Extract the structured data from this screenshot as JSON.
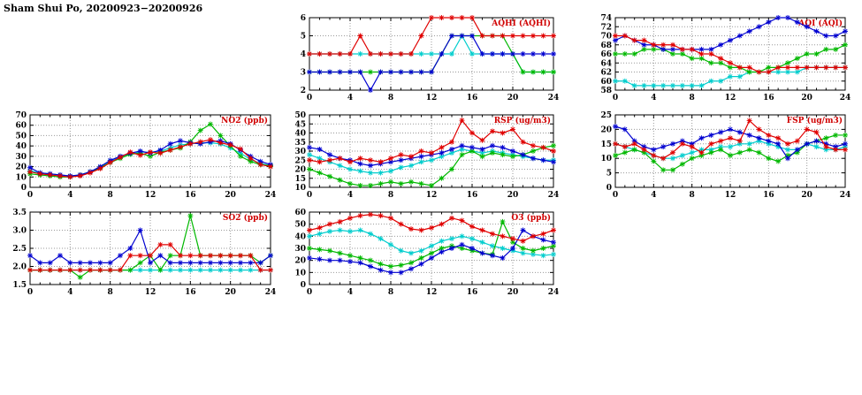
{
  "title": "Sham Shui Po, 20200923−20200926",
  "colors": {
    "red": "#e00000",
    "green": "#00b800",
    "blue": "#0000d0",
    "cyan": "#00cdcd",
    "chart_title": "#d00000"
  },
  "chart_data": [
    {
      "id": "aqhi",
      "type": "line",
      "title": "AQHI (AQHI)",
      "x_range": [
        0,
        24
      ],
      "x_ticks": [
        0,
        4,
        8,
        12,
        16,
        20,
        24
      ],
      "ylim": [
        2,
        6
      ],
      "y_ticks": [
        2,
        3,
        4,
        5,
        6
      ],
      "series": [
        {
          "name": "cyan",
          "color": "cyan",
          "values": [
            4,
            4,
            4,
            4,
            4,
            4,
            4,
            4,
            4,
            4,
            4,
            4,
            4,
            4,
            4,
            5,
            4,
            4,
            4,
            4,
            4,
            3,
            3,
            3,
            3
          ]
        },
        {
          "name": "green",
          "color": "green",
          "values": [
            3,
            3,
            3,
            3,
            3,
            3,
            3,
            3,
            3,
            3,
            3,
            3,
            3,
            4,
            5,
            5,
            5,
            5,
            5,
            5,
            4,
            3,
            3,
            3,
            3
          ]
        },
        {
          "name": "blue",
          "color": "blue",
          "values": [
            3,
            3,
            3,
            3,
            3,
            3,
            2,
            3,
            3,
            3,
            3,
            3,
            3,
            4,
            5,
            5,
            5,
            4,
            4,
            4,
            4,
            4,
            4,
            4,
            4
          ]
        },
        {
          "name": "red",
          "color": "red",
          "values": [
            4,
            4,
            4,
            4,
            4,
            5,
            4,
            4,
            4,
            4,
            4,
            5,
            6,
            6,
            6,
            6,
            6,
            5,
            5,
            5,
            5,
            5,
            5,
            5,
            5
          ]
        }
      ]
    },
    {
      "id": "aqi",
      "type": "line",
      "title": "AQI (AQI)",
      "x_range": [
        0,
        24
      ],
      "x_ticks": [
        0,
        4,
        8,
        12,
        16,
        20,
        24
      ],
      "ylim": [
        58,
        74
      ],
      "y_ticks": [
        58,
        60,
        62,
        64,
        66,
        68,
        70,
        72,
        74
      ],
      "series": [
        {
          "name": "cyan",
          "color": "cyan",
          "values": [
            60,
            60,
            59,
            59,
            59,
            59,
            59,
            59,
            59,
            59,
            60,
            60,
            61,
            61,
            62,
            62,
            62,
            62,
            62,
            62,
            63,
            63,
            63,
            63,
            63
          ]
        },
        {
          "name": "green",
          "color": "green",
          "values": [
            66,
            66,
            66,
            67,
            67,
            67,
            66,
            66,
            65,
            65,
            64,
            64,
            63,
            63,
            62,
            62,
            63,
            63,
            64,
            65,
            66,
            66,
            67,
            67,
            68
          ]
        },
        {
          "name": "blue",
          "color": "blue",
          "values": [
            69,
            70,
            69,
            68,
            68,
            67,
            67,
            67,
            67,
            67,
            67,
            68,
            69,
            70,
            71,
            72,
            73,
            74,
            74,
            73,
            72,
            71,
            70,
            70,
            71
          ]
        },
        {
          "name": "red",
          "color": "red",
          "values": [
            70,
            70,
            69,
            69,
            68,
            68,
            68,
            67,
            67,
            66,
            66,
            65,
            64,
            63,
            63,
            62,
            62,
            63,
            63,
            63,
            63,
            63,
            63,
            63,
            63
          ]
        }
      ]
    },
    {
      "id": "no2",
      "type": "line",
      "title": "NO2 (ppb)",
      "x_range": [
        0,
        24
      ],
      "x_ticks": [
        0,
        4,
        8,
        12,
        16,
        20,
        24
      ],
      "ylim": [
        0,
        70
      ],
      "y_ticks": [
        0,
        10,
        20,
        30,
        40,
        50,
        60,
        70
      ],
      "series": [
        {
          "name": "cyan",
          "color": "cyan",
          "values": [
            16,
            14,
            13,
            12,
            11,
            12,
            15,
            19,
            25,
            30,
            32,
            34,
            34,
            35,
            38,
            41,
            42,
            43,
            43,
            42,
            38,
            33,
            27,
            23,
            21
          ]
        },
        {
          "name": "green",
          "color": "green",
          "values": [
            13,
            12,
            11,
            10,
            10,
            12,
            15,
            19,
            24,
            28,
            32,
            33,
            30,
            34,
            36,
            38,
            44,
            55,
            61,
            50,
            40,
            30,
            25,
            22,
            21
          ]
        },
        {
          "name": "blue",
          "color": "blue",
          "values": [
            19,
            14,
            13,
            12,
            11,
            12,
            15,
            20,
            26,
            30,
            33,
            35,
            33,
            36,
            42,
            45,
            43,
            42,
            44,
            45,
            42,
            36,
            30,
            25,
            22
          ]
        },
        {
          "name": "red",
          "color": "red",
          "values": [
            15,
            13,
            12,
            11,
            10,
            11,
            14,
            18,
            24,
            29,
            34,
            31,
            34,
            33,
            36,
            39,
            42,
            44,
            46,
            43,
            41,
            37,
            28,
            22,
            20
          ]
        }
      ]
    },
    {
      "id": "rsp",
      "type": "line",
      "title": "RSP (ug/m3)",
      "x_range": [
        0,
        24
      ],
      "x_ticks": [
        0,
        4,
        8,
        12,
        16,
        20,
        24
      ],
      "ylim": [
        10,
        50
      ],
      "y_ticks": [
        10,
        15,
        20,
        25,
        30,
        35,
        40,
        45,
        50
      ],
      "series": [
        {
          "name": "cyan",
          "color": "cyan",
          "values": [
            28,
            26,
            24,
            22,
            20,
            19,
            18,
            18,
            19,
            21,
            22,
            24,
            25,
            27,
            29,
            31,
            30,
            29,
            30,
            29,
            28,
            27,
            26,
            25,
            25
          ]
        },
        {
          "name": "green",
          "color": "green",
          "values": [
            20,
            18,
            16,
            14,
            12,
            11,
            11,
            12,
            13,
            12,
            13,
            12,
            11,
            15,
            20,
            28,
            30,
            27,
            29,
            28,
            27,
            28,
            30,
            32,
            33
          ]
        },
        {
          "name": "blue",
          "color": "blue",
          "values": [
            32,
            31,
            28,
            26,
            25,
            23,
            22,
            23,
            24,
            25,
            26,
            27,
            28,
            29,
            31,
            33,
            32,
            31,
            33,
            32,
            30,
            28,
            26,
            25,
            24
          ]
        },
        {
          "name": "red",
          "color": "red",
          "values": [
            25,
            24,
            25,
            26,
            24,
            26,
            25,
            24,
            26,
            28,
            27,
            30,
            29,
            32,
            35,
            47,
            40,
            36,
            41,
            40,
            42,
            35,
            33,
            32,
            30
          ]
        }
      ]
    },
    {
      "id": "fsp",
      "type": "line",
      "title": "FSP (ug/m3)",
      "x_range": [
        0,
        24
      ],
      "x_ticks": [
        0,
        4,
        8,
        12,
        16,
        20,
        24
      ],
      "ylim": [
        0,
        25
      ],
      "y_ticks": [
        0,
        5,
        10,
        15,
        20,
        25
      ],
      "series": [
        {
          "name": "cyan",
          "color": "cyan",
          "values": [
            15,
            14,
            13,
            12,
            11,
            10,
            10,
            11,
            12,
            13,
            13,
            14,
            14,
            15,
            15,
            16,
            15,
            14,
            13,
            13,
            15,
            14,
            13,
            13,
            14
          ]
        },
        {
          "name": "green",
          "color": "green",
          "values": [
            11,
            12,
            13,
            12,
            9,
            6,
            6,
            8,
            10,
            11,
            12,
            13,
            11,
            12,
            13,
            12,
            10,
            9,
            11,
            12,
            15,
            16,
            17,
            18,
            18
          ]
        },
        {
          "name": "blue",
          "color": "blue",
          "values": [
            21,
            20,
            16,
            14,
            13,
            14,
            15,
            16,
            15,
            17,
            18,
            19,
            20,
            19,
            18,
            17,
            16,
            15,
            10,
            13,
            15,
            16,
            15,
            14,
            15
          ]
        },
        {
          "name": "red",
          "color": "red",
          "values": [
            15,
            14,
            15,
            13,
            11,
            10,
            12,
            15,
            14,
            12,
            15,
            16,
            17,
            16,
            23,
            20,
            18,
            17,
            15,
            16,
            20,
            19,
            14,
            13,
            13
          ]
        }
      ]
    },
    {
      "id": "so2",
      "type": "line",
      "title": "SO2 (ppb)",
      "x_range": [
        0,
        24
      ],
      "x_ticks": [
        0,
        4,
        8,
        12,
        16,
        20,
        24
      ],
      "ylim": [
        1.5,
        3.5
      ],
      "y_ticks": [
        1.5,
        2.0,
        2.5,
        3.0,
        3.5
      ],
      "y_tick_labels": [
        "1.5",
        "2.0",
        "2.5",
        "3.0",
        "3.5"
      ],
      "series": [
        {
          "name": "cyan",
          "color": "cyan",
          "values": [
            1.9,
            1.9,
            1.9,
            1.9,
            1.9,
            1.9,
            1.9,
            1.9,
            1.9,
            1.9,
            1.9,
            1.9,
            1.9,
            1.9,
            1.9,
            1.9,
            1.9,
            1.9,
            1.9,
            1.9,
            1.9,
            1.9,
            1.9,
            1.9,
            1.9
          ]
        },
        {
          "name": "green",
          "color": "green",
          "values": [
            1.9,
            1.9,
            1.9,
            1.9,
            1.9,
            1.7,
            1.9,
            1.9,
            1.9,
            1.9,
            1.9,
            2.1,
            2.3,
            1.9,
            2.3,
            2.3,
            3.4,
            2.3,
            2.3,
            2.3,
            2.3,
            2.3,
            2.3,
            2.1,
            2.3
          ]
        },
        {
          "name": "blue",
          "color": "blue",
          "values": [
            2.3,
            2.1,
            2.1,
            2.3,
            2.1,
            2.1,
            2.1,
            2.1,
            2.1,
            2.3,
            2.5,
            3.0,
            2.1,
            2.3,
            2.1,
            2.1,
            2.1,
            2.1,
            2.1,
            2.1,
            2.1,
            2.1,
            2.1,
            2.1,
            2.3
          ]
        },
        {
          "name": "red",
          "color": "red",
          "values": [
            1.9,
            1.9,
            1.9,
            1.9,
            1.9,
            1.9,
            1.9,
            1.9,
            1.9,
            1.9,
            2.3,
            2.3,
            2.3,
            2.6,
            2.6,
            2.3,
            2.3,
            2.3,
            2.3,
            2.3,
            2.3,
            2.3,
            2.3,
            1.9,
            1.9
          ]
        }
      ]
    },
    {
      "id": "o3",
      "type": "line",
      "title": "O3 (ppb)",
      "x_range": [
        0,
        24
      ],
      "x_ticks": [
        0,
        4,
        8,
        12,
        16,
        20,
        24
      ],
      "ylim": [
        0,
        60
      ],
      "y_ticks": [
        0,
        10,
        20,
        30,
        40,
        50,
        60
      ],
      "series": [
        {
          "name": "cyan",
          "color": "cyan",
          "values": [
            40,
            42,
            44,
            45,
            44,
            45,
            42,
            38,
            33,
            28,
            26,
            28,
            32,
            36,
            38,
            40,
            38,
            35,
            32,
            30,
            28,
            26,
            25,
            24,
            25
          ]
        },
        {
          "name": "green",
          "color": "green",
          "values": [
            30,
            29,
            28,
            26,
            24,
            22,
            20,
            17,
            15,
            16,
            18,
            22,
            26,
            30,
            32,
            30,
            28,
            26,
            25,
            52,
            35,
            30,
            28,
            30,
            32
          ]
        },
        {
          "name": "blue",
          "color": "blue",
          "values": [
            22,
            21,
            20,
            20,
            19,
            18,
            15,
            12,
            10,
            10,
            13,
            17,
            22,
            27,
            30,
            33,
            30,
            26,
            24,
            22,
            30,
            45,
            40,
            37,
            35
          ]
        },
        {
          "name": "red",
          "color": "red",
          "values": [
            45,
            47,
            50,
            52,
            55,
            57,
            58,
            57,
            55,
            50,
            46,
            45,
            47,
            50,
            55,
            53,
            48,
            45,
            42,
            40,
            38,
            36,
            40,
            42,
            45
          ]
        }
      ]
    }
  ]
}
